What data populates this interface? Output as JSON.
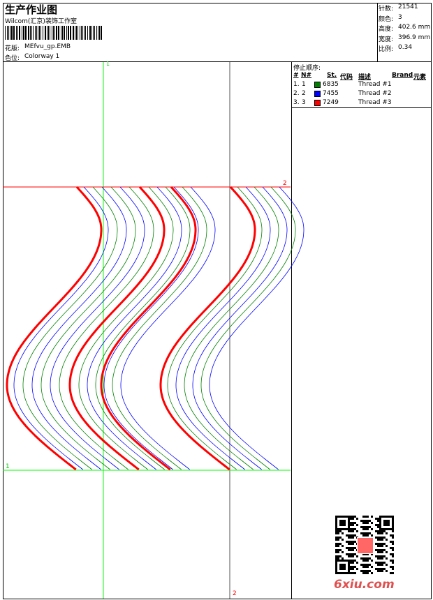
{
  "header": {
    "title": "生产作业图",
    "company": "Wilcom(汇京)装饰工作室",
    "design_label": "花版:",
    "design_value": "MEfvu_gp.EMB",
    "colorway_label": "色位:",
    "colorway_value": "Colorway 1"
  },
  "stats": [
    {
      "label": "针数:",
      "value": "21541"
    },
    {
      "label": "颜色:",
      "value": "3"
    },
    {
      "label": "高度:",
      "value": "402.6 mm"
    },
    {
      "label": "宽度:",
      "value": "396.9 mm"
    },
    {
      "label": "比例:",
      "value": "0.34"
    }
  ],
  "stop_sequence": {
    "title": "停止顺序:",
    "headers": {
      "idx": "#",
      "n": "N#",
      "st": "St.",
      "code": "代码",
      "desc": "描述",
      "brand": "Brand",
      "element": "元素"
    },
    "rows": [
      {
        "idx": "1.",
        "n": "1",
        "code": "6835",
        "desc": "Thread #1",
        "color": "#007f00"
      },
      {
        "idx": "2.",
        "n": "2",
        "code": "7455",
        "desc": "Thread #2",
        "color": "#0000ff"
      },
      {
        "idx": "3.",
        "n": "3",
        "code": "7249",
        "desc": "Thread #3",
        "color": "#ff0000"
      }
    ]
  },
  "guides": {
    "v1_label": "1",
    "h2_label": "2",
    "h1_label": "1",
    "v2_label": "2"
  },
  "watermark": "6xiu.com"
}
